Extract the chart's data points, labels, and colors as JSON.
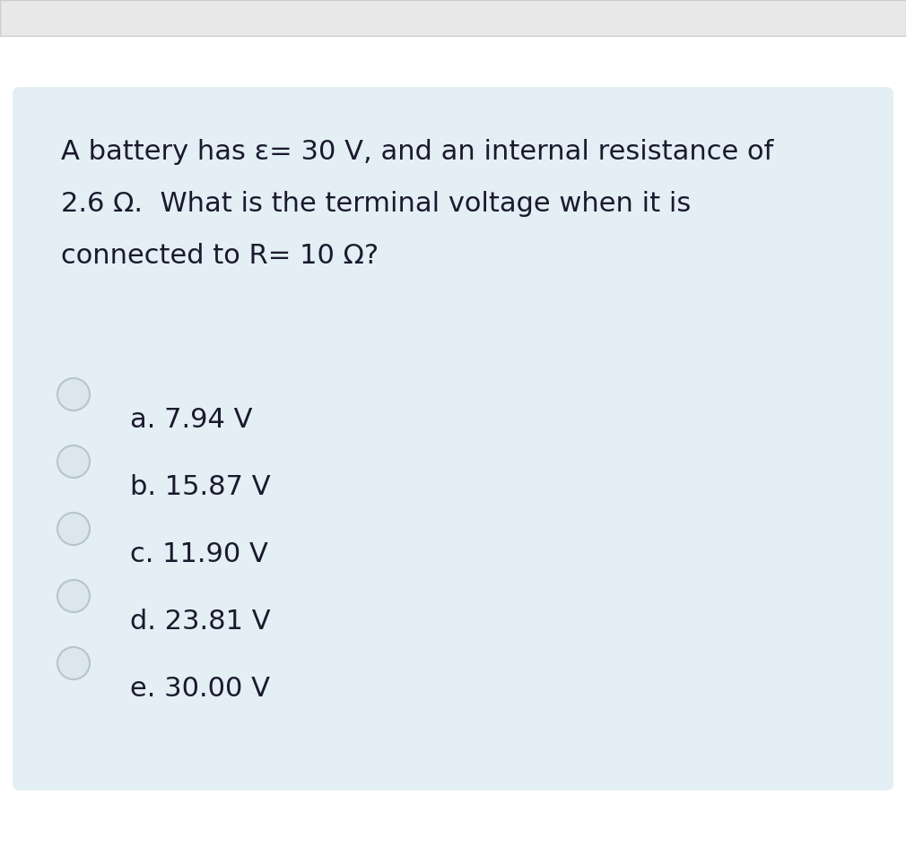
{
  "bg_white": "#ffffff",
  "bg_gray_strip": "#e8e8e8",
  "bg_card": "#e4eef5",
  "text_color": "#1a1a2e",
  "radio_fill": "#dce6ed",
  "radio_edge": "#b8c4cc",
  "question_lines": [
    "A battery has ε= 30 V, and an internal resistance of",
    "2.6 Ω.  What is the terminal voltage when it is",
    "connected to R= 10 Ω?"
  ],
  "options": [
    "a. 7.94 V",
    "b. 15.87 V",
    "c. 11.90 V",
    "d. 23.81 V",
    "e. 30.00 V"
  ],
  "fig_width": 10.1,
  "fig_height": 9.64,
  "dpi": 100,
  "question_fontsize": 22,
  "option_fontsize": 22
}
